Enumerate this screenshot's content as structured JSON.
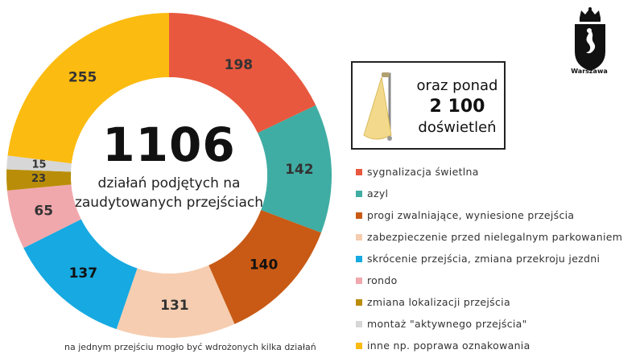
{
  "chart_data": {
    "type": "pie",
    "categories": [
      "sygnalizacja świetlna",
      "azyl",
      "progi zwalniające, wyniesione przejścia",
      "zabezpieczenie przed nielegalnym parkowaniem",
      "skrócenie przejścia, zmiana przekroju jezdni",
      "rondo",
      "zmiana lokalizacji przejścia",
      "montaż \"aktywnego przejścia\"",
      "inne np. poprawa oznakowania"
    ],
    "values": [
      198,
      142,
      140,
      131,
      137,
      65,
      23,
      15,
      255
    ],
    "colors": [
      "#E8583E",
      "#3FADA3",
      "#C85A15",
      "#F6CDB0",
      "#17A9E1",
      "#F1A8AD",
      "#B98D07",
      "#D7D7D7",
      "#FBBB10"
    ],
    "legend_order": [
      0,
      1,
      2,
      3,
      4,
      5,
      6,
      7,
      8
    ],
    "slice_order": [
      0,
      1,
      2,
      3,
      4,
      5,
      6,
      7,
      8
    ],
    "label_colors": [
      "#333333",
      "#333333",
      "#111111",
      "#333333",
      "#111111",
      "#333333",
      "#333333",
      "#333333",
      "#333333"
    ],
    "total": "1106",
    "center_caption": "działań podjętych na zaudytowanych przejściach",
    "legend_placement": "right"
  },
  "info_box": {
    "line1": "oraz ponad",
    "line2": "2 100",
    "line3": "doświetleń"
  },
  "footnote": "na jednym przejściu mogło być wdrożonych kilka działań",
  "logo": {
    "text": "Warszawa"
  }
}
